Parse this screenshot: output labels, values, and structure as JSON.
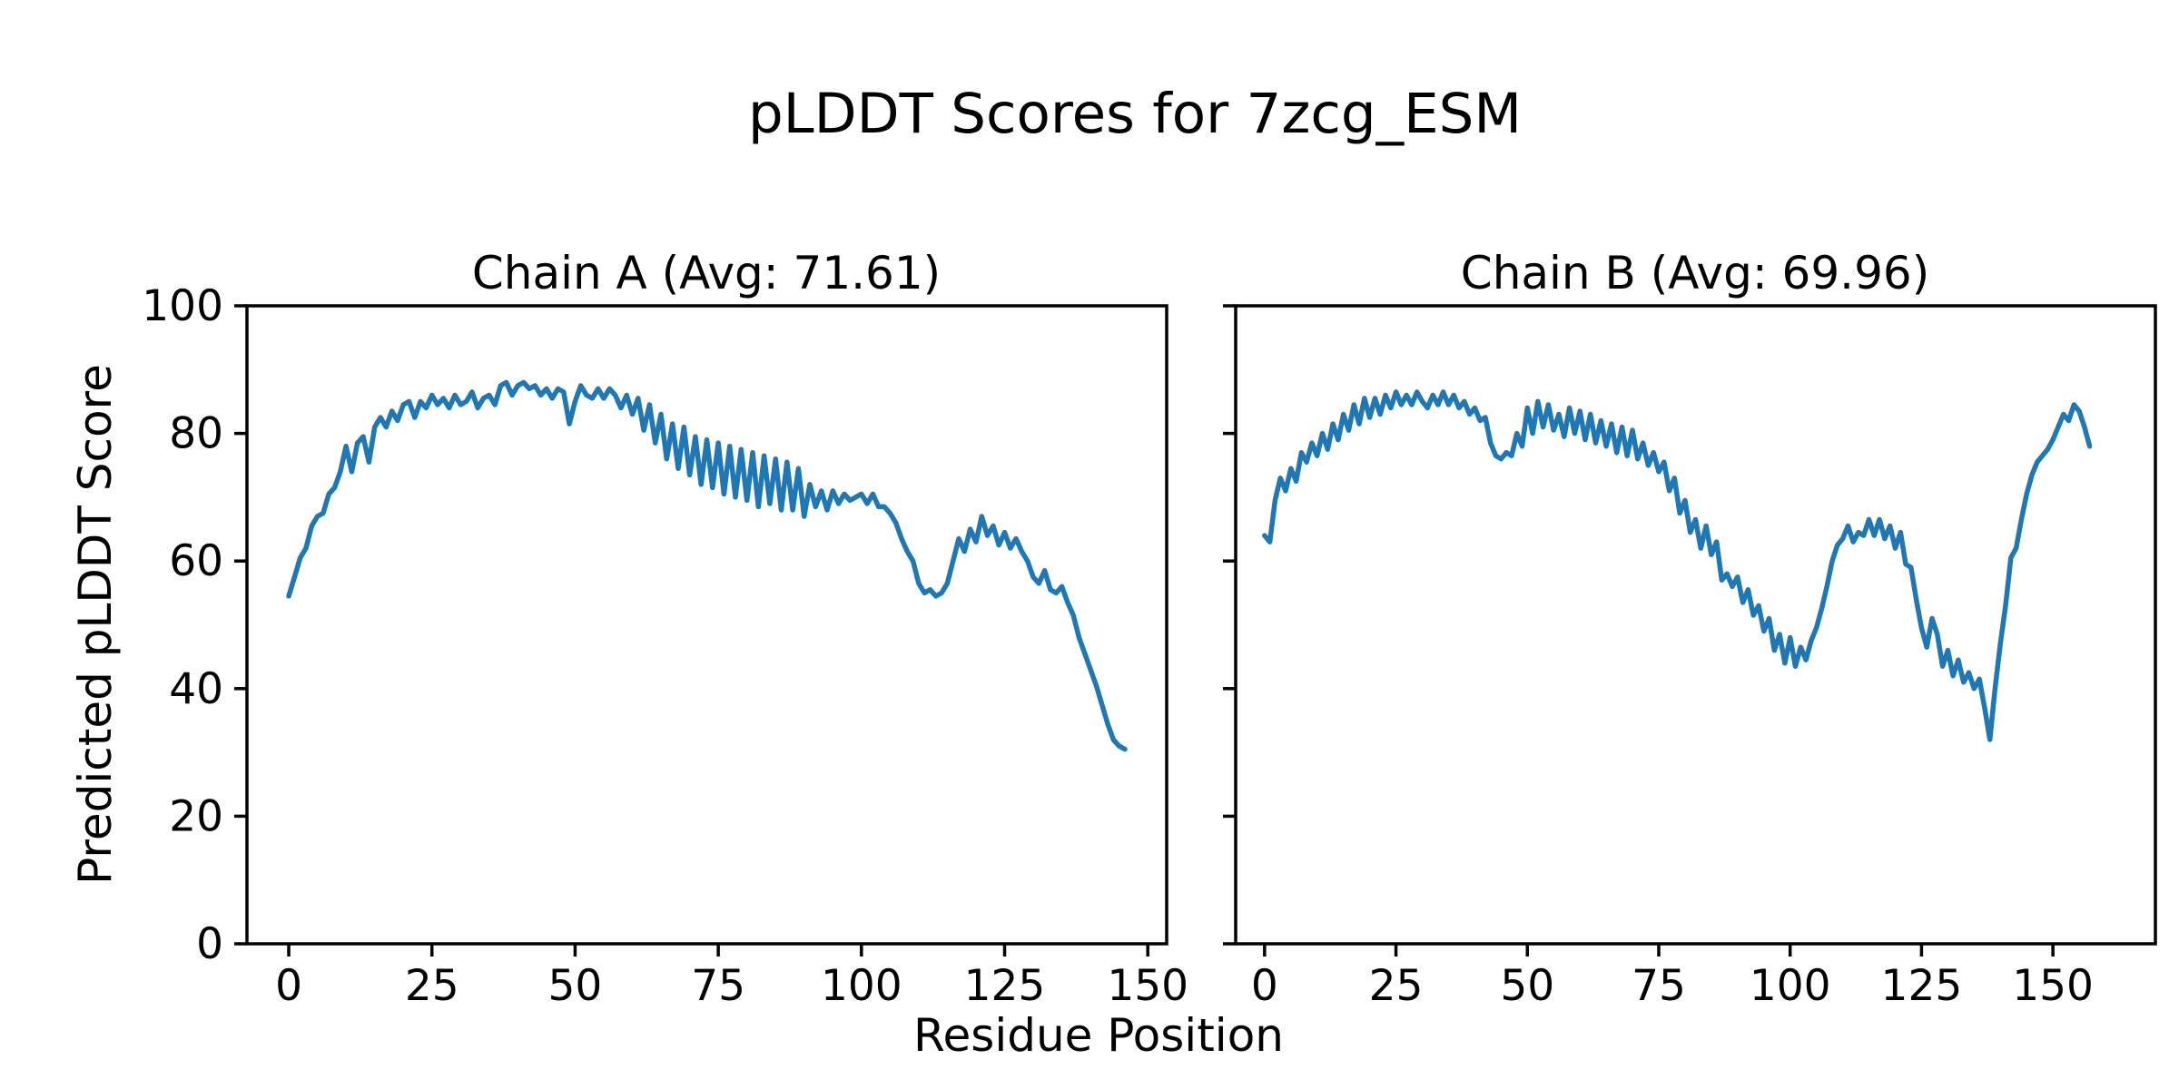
{
  "figure": {
    "suptitle": "pLDDT Scores for 7zcg_ESM",
    "xlabel": "Residue Position",
    "ylabel": "Predicted pLDDT Score",
    "background": "#ffffff"
  },
  "chart_data": [
    {
      "type": "line",
      "title": "Chain A (Avg: 71.61)",
      "chain": "A",
      "avg": 71.61,
      "line_color": "#1f77b4",
      "x_start": 0,
      "x_step": 1,
      "xlim": [
        -7.3,
        153.3
      ],
      "ylim": [
        0,
        100
      ],
      "xticks": [
        0,
        25,
        50,
        75,
        100,
        125,
        150
      ],
      "yticks": [
        0,
        20,
        40,
        60,
        80,
        100
      ],
      "grid": false,
      "values": [
        54.5,
        57.5,
        60.5,
        62.0,
        65.5,
        67.0,
        67.5,
        70.5,
        71.5,
        74.0,
        78.0,
        74.0,
        78.5,
        79.5,
        75.5,
        81.0,
        82.5,
        81.0,
        83.5,
        82.0,
        84.5,
        85.0,
        82.5,
        85.0,
        84.0,
        86.0,
        84.5,
        85.5,
        84.0,
        86.0,
        84.5,
        85.0,
        86.5,
        84.0,
        85.5,
        86.0,
        84.5,
        87.5,
        88.0,
        86.0,
        87.5,
        88.0,
        87.0,
        87.5,
        86.0,
        87.0,
        85.5,
        87.0,
        86.5,
        81.5,
        85.0,
        87.5,
        86.0,
        85.5,
        87.0,
        85.5,
        87.0,
        86.0,
        84.0,
        86.0,
        83.0,
        85.5,
        80.5,
        84.5,
        78.5,
        83.0,
        76.0,
        81.5,
        74.5,
        81.0,
        73.5,
        79.5,
        72.0,
        79.0,
        71.5,
        78.5,
        70.5,
        78.0,
        70.0,
        77.5,
        69.5,
        77.0,
        68.5,
        76.5,
        69.0,
        76.0,
        68.0,
        75.5,
        68.0,
        74.5,
        67.0,
        72.0,
        68.5,
        71.0,
        68.0,
        71.0,
        69.0,
        70.5,
        69.5,
        70.0,
        70.5,
        69.0,
        70.5,
        68.5,
        68.5,
        67.5,
        66.0,
        63.5,
        61.5,
        60.0,
        56.5,
        55.0,
        55.5,
        54.5,
        55.0,
        56.5,
        60.0,
        63.5,
        61.5,
        65.0,
        63.0,
        67.0,
        64.0,
        65.5,
        62.5,
        64.5,
        62.0,
        63.5,
        61.5,
        60.0,
        57.5,
        56.5,
        58.5,
        55.5,
        55.0,
        56.0,
        53.5,
        51.5,
        48.0,
        45.5,
        43.0,
        40.5,
        37.5,
        34.5,
        32.0,
        31.0,
        30.5
      ]
    },
    {
      "type": "line",
      "title": "Chain B (Avg: 69.96)",
      "chain": "B",
      "avg": 69.96,
      "line_color": "#1f77b4",
      "x_start": 0,
      "x_step": 1,
      "xlim": [
        -5.5,
        169.5
      ],
      "ylim": [
        0,
        100
      ],
      "xticks": [
        0,
        25,
        50,
        75,
        100,
        125,
        150
      ],
      "yticks": [
        0,
        20,
        40,
        60,
        80,
        100
      ],
      "grid": false,
      "values": [
        64.0,
        63.0,
        69.5,
        73.0,
        71.0,
        74.5,
        72.5,
        77.0,
        75.5,
        78.5,
        76.5,
        80.0,
        77.5,
        81.5,
        79.0,
        83.0,
        80.5,
        84.5,
        81.5,
        85.5,
        82.5,
        85.5,
        83.0,
        86.0,
        84.0,
        86.5,
        84.5,
        86.0,
        84.5,
        86.5,
        85.0,
        84.0,
        86.0,
        84.5,
        86.5,
        84.5,
        86.0,
        84.0,
        85.0,
        83.0,
        84.0,
        82.0,
        82.5,
        78.5,
        76.5,
        76.0,
        77.0,
        76.5,
        80.0,
        78.0,
        84.0,
        80.0,
        85.0,
        81.0,
        84.5,
        80.5,
        83.0,
        79.5,
        84.0,
        80.0,
        83.5,
        79.0,
        83.0,
        78.5,
        82.0,
        78.0,
        81.5,
        77.0,
        81.0,
        76.5,
        80.5,
        76.0,
        78.5,
        75.0,
        77.0,
        74.0,
        75.5,
        71.0,
        73.0,
        67.5,
        69.5,
        64.5,
        66.5,
        62.0,
        65.5,
        61.0,
        63.0,
        57.0,
        58.0,
        56.0,
        57.5,
        53.5,
        55.5,
        51.5,
        53.0,
        49.0,
        51.0,
        46.0,
        48.5,
        44.0,
        48.0,
        43.5,
        46.5,
        44.5,
        47.5,
        49.5,
        52.5,
        56.0,
        60.0,
        62.5,
        63.5,
        65.5,
        63.0,
        64.5,
        64.0,
        66.5,
        64.0,
        66.5,
        63.5,
        65.5,
        62.0,
        64.5,
        59.5,
        59.0,
        54.0,
        49.5,
        46.5,
        51.0,
        48.5,
        43.5,
        46.0,
        42.0,
        44.5,
        41.0,
        42.5,
        40.0,
        41.5,
        37.0,
        32.0,
        40.0,
        47.0,
        53.0,
        60.5,
        62.0,
        66.5,
        70.5,
        73.5,
        75.5,
        76.5,
        77.5,
        79.0,
        81.0,
        83.0,
        82.0,
        84.5,
        83.5,
        81.0,
        78.0
      ]
    }
  ]
}
